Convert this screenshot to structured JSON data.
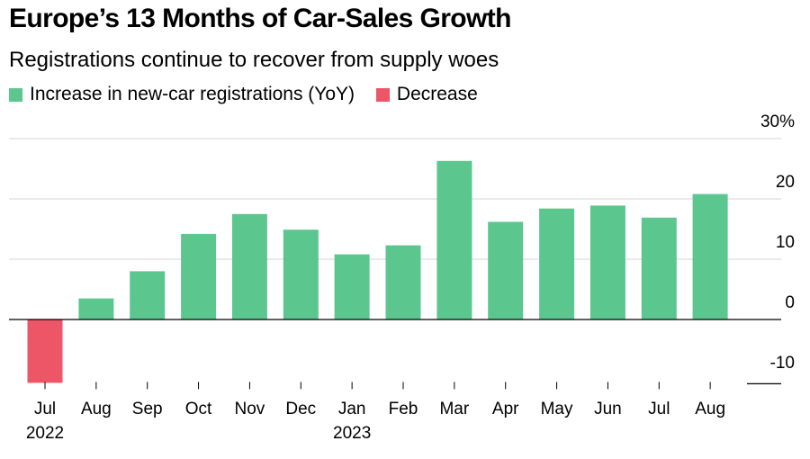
{
  "title": "Europe’s 13 Months of Car-Sales Growth",
  "subtitle": "Registrations continue to recover from supply woes",
  "legend": [
    {
      "label": "Increase in new-car registrations (YoY)",
      "color": "#5cc68f"
    },
    {
      "label": "Decrease",
      "color": "#ec5667"
    }
  ],
  "chart_data": {
    "type": "bar",
    "categories": [
      "Jul",
      "Aug",
      "Sep",
      "Oct",
      "Nov",
      "Dec",
      "Jan",
      "Feb",
      "Mar",
      "Apr",
      "May",
      "Jun",
      "Jul",
      "Aug"
    ],
    "year_labels": [
      "2022",
      "",
      "",
      "",
      "",
      "",
      "2023",
      "",
      "",
      "",
      "",
      "",
      "",
      ""
    ],
    "values": [
      -10.5,
      3.5,
      8.0,
      14.2,
      17.5,
      14.9,
      10.8,
      12.3,
      26.3,
      16.2,
      18.4,
      18.9,
      16.9,
      20.8
    ],
    "ylim": [
      -10.5,
      30
    ],
    "yticks": [
      30,
      20,
      10,
      0,
      -10
    ],
    "ytick_labels": [
      "30%",
      "20",
      "10",
      "0",
      "-10"
    ],
    "colors": {
      "increase": "#5cc68f",
      "decrease": "#ec5667"
    },
    "grid": true
  }
}
